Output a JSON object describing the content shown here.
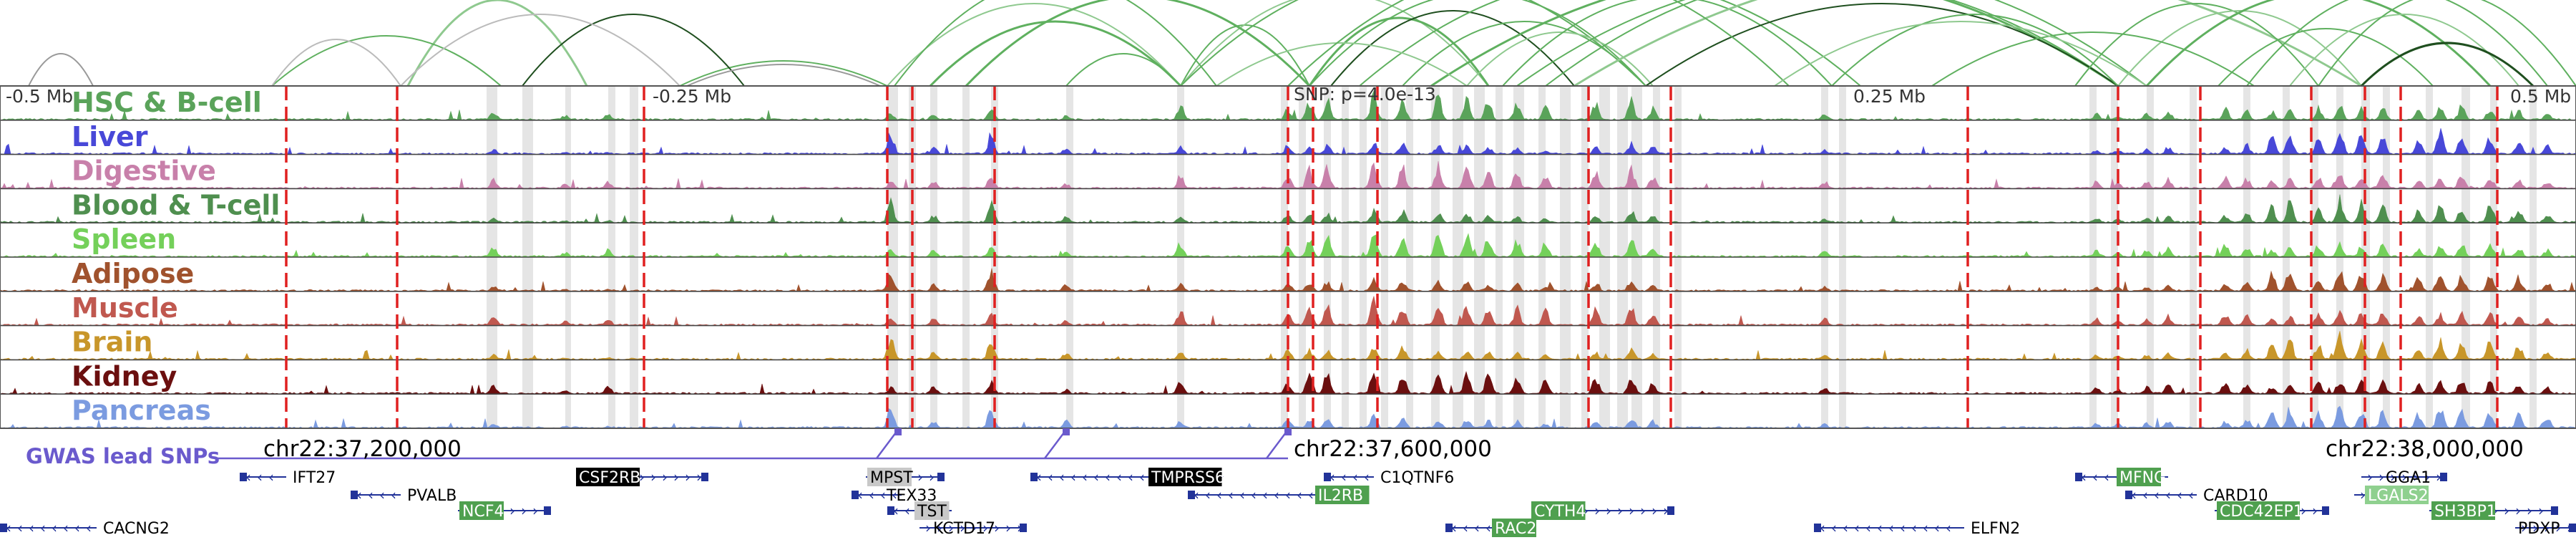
{
  "scale_labels": [
    "-0.5 Mb",
    "-0.25 Mb",
    "SNP: p=4.0e-13",
    "0.25 Mb",
    "0.5 Mb"
  ],
  "tracks": [
    {
      "name": "HSC & B-cell",
      "color": "#5aa35a"
    },
    {
      "name": "Liver",
      "color": "#4848d8"
    },
    {
      "name": "Digestive",
      "color": "#c880aa"
    },
    {
      "name": "Blood & T-cell",
      "color": "#4f8f4f"
    },
    {
      "name": "Spleen",
      "color": "#74d05a"
    },
    {
      "name": "Adipose",
      "color": "#a0522d"
    },
    {
      "name": "Muscle",
      "color": "#c0584f"
    },
    {
      "name": "Brain",
      "color": "#c8962a"
    },
    {
      "name": "Kidney",
      "color": "#6b0f0f"
    },
    {
      "name": "Pancreas",
      "color": "#7b9be0"
    }
  ],
  "gwas": {
    "label": "GWAS lead SNPs",
    "color": "#6a5acd"
  },
  "coordinates": [
    "chr22:37,200,000",
    "chr22:37,600,000",
    "chr22:38,000,000"
  ],
  "genes": [
    {
      "name": "IFT27",
      "row": 0,
      "highlight": "none",
      "strand": "-"
    },
    {
      "name": "PVALB",
      "row": 1,
      "highlight": "none",
      "strand": "-"
    },
    {
      "name": "NCF4",
      "row": 2,
      "highlight": "green",
      "strand": "+"
    },
    {
      "name": "CACNG2",
      "row": 3,
      "highlight": "none",
      "strand": "-"
    },
    {
      "name": "CSF2RB",
      "row": 0,
      "highlight": "black",
      "strand": "+"
    },
    {
      "name": "MPST",
      "row": 0,
      "highlight": "gray",
      "strand": "+"
    },
    {
      "name": "TEX33",
      "row": 1,
      "highlight": "none",
      "strand": "-"
    },
    {
      "name": "TST",
      "row": 2,
      "highlight": "gray",
      "strand": "-"
    },
    {
      "name": "KCTD17",
      "row": 3,
      "highlight": "none",
      "strand": "+"
    },
    {
      "name": "TMPRSS6",
      "row": 0,
      "highlight": "black",
      "strand": "-"
    },
    {
      "name": "IL2RB",
      "row": 1,
      "highlight": "green",
      "strand": "-"
    },
    {
      "name": "C1QTNF6",
      "row": 0,
      "highlight": "none",
      "strand": "-"
    },
    {
      "name": "RAC2",
      "row": 3,
      "highlight": "green",
      "strand": "-"
    },
    {
      "name": "CYTH4",
      "row": 2,
      "highlight": "green",
      "strand": "+"
    },
    {
      "name": "ELFN2",
      "row": 3,
      "highlight": "none",
      "strand": "-"
    },
    {
      "name": "MFNG",
      "row": 0,
      "highlight": "green",
      "strand": "-"
    },
    {
      "name": "CARD10",
      "row": 1,
      "highlight": "none",
      "strand": "-"
    },
    {
      "name": "CDC42EP1",
      "row": 2,
      "highlight": "green",
      "strand": "+"
    },
    {
      "name": "GGA1",
      "row": 0,
      "highlight": "none",
      "strand": "+"
    },
    {
      "name": "LGALS2",
      "row": 1,
      "highlight": "lightgreen",
      "strand": "+"
    },
    {
      "name": "SH3BP1",
      "row": 2,
      "highlight": "green",
      "strand": "+"
    },
    {
      "name": "PDXP",
      "row": 3,
      "highlight": "none",
      "strand": "+"
    }
  ]
}
